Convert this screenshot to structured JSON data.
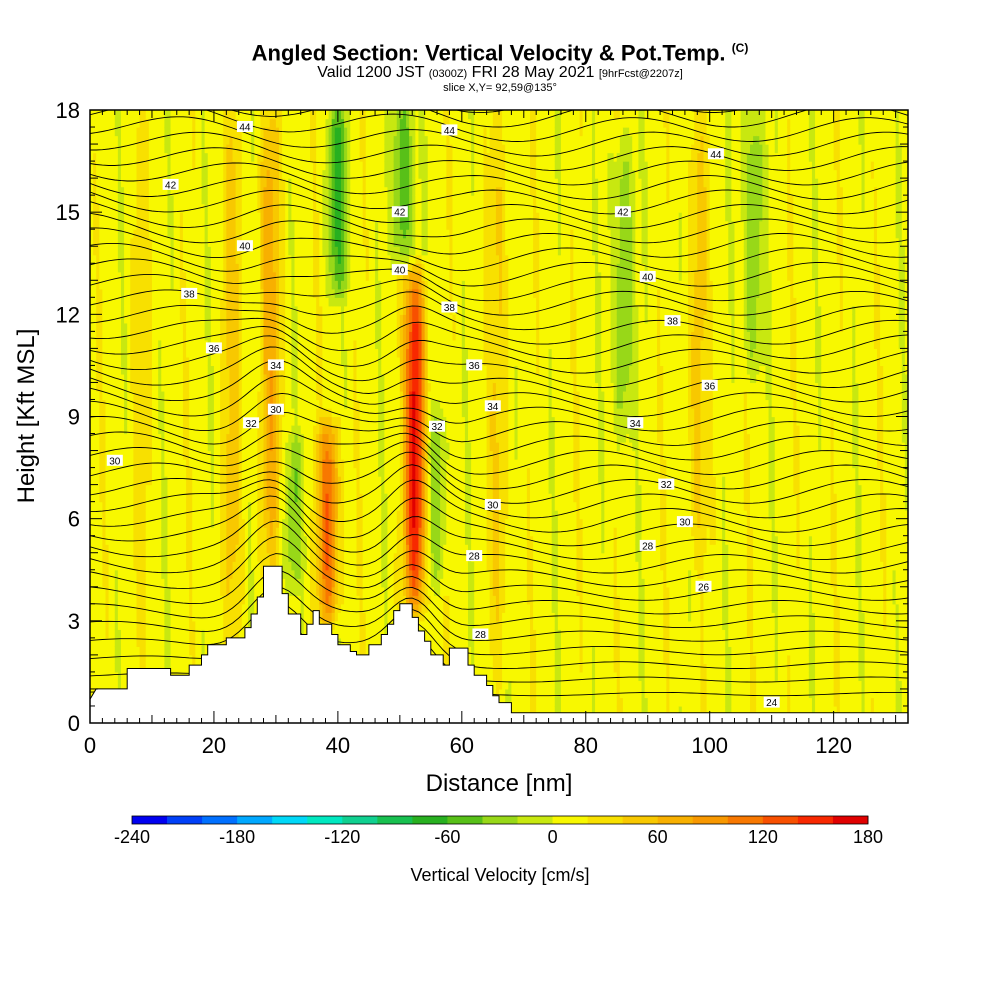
{
  "title": {
    "main": "Angled Section: Vertical Velocity & Pot.Temp.",
    "main_suffix": "(C)",
    "valid_prefix": "Valid 1200 JST",
    "valid_z": "(0300Z)",
    "valid_date": "FRI 28 May 2021",
    "valid_fcst": "[9hrFcst@2207z]",
    "slice": "slice X,Y= 92,59@135°"
  },
  "chart_data": {
    "type": "heatmap",
    "xlabel": "Distance [nm]",
    "ylabel": "Height [Kft MSL]",
    "xlim": [
      0,
      132
    ],
    "ylim": [
      0,
      18
    ],
    "xticks": [
      0,
      20,
      40,
      60,
      80,
      100,
      120
    ],
    "xtick_labels": [
      "0",
      "20",
      "40",
      "60",
      "80",
      "100",
      "120"
    ],
    "yticks": [
      0,
      3,
      6,
      9,
      12,
      15,
      18
    ],
    "ytick_labels": [
      "0",
      "3",
      "6",
      "9",
      "12",
      "15",
      "18"
    ],
    "terrain": [
      [
        0,
        0.7
      ],
      [
        1,
        1.0
      ],
      [
        6,
        1.0
      ],
      [
        6,
        1.6
      ],
      [
        13,
        1.6
      ],
      [
        13,
        1.4
      ],
      [
        16,
        1.4
      ],
      [
        16,
        1.7
      ],
      [
        18,
        1.7
      ],
      [
        18,
        2.0
      ],
      [
        19,
        2.0
      ],
      [
        19,
        2.3
      ],
      [
        22,
        2.3
      ],
      [
        22,
        2.5
      ],
      [
        25,
        2.5
      ],
      [
        25,
        2.8
      ],
      [
        26,
        2.8
      ],
      [
        26,
        3.2
      ],
      [
        27,
        3.2
      ],
      [
        27,
        3.7
      ],
      [
        28,
        3.7
      ],
      [
        28,
        4.6
      ],
      [
        31,
        4.6
      ],
      [
        31,
        3.8
      ],
      [
        32,
        3.8
      ],
      [
        32,
        3.2
      ],
      [
        34,
        3.2
      ],
      [
        34,
        2.6
      ],
      [
        35,
        2.6
      ],
      [
        35,
        2.9
      ],
      [
        36,
        2.9
      ],
      [
        36,
        3.3
      ],
      [
        37,
        3.3
      ],
      [
        37,
        2.9
      ],
      [
        39,
        2.9
      ],
      [
        39,
        2.6
      ],
      [
        40,
        2.6
      ],
      [
        40,
        2.3
      ],
      [
        42,
        2.3
      ],
      [
        42,
        2.1
      ],
      [
        43,
        2.1
      ],
      [
        43,
        2.0
      ],
      [
        45,
        2.0
      ],
      [
        45,
        2.3
      ],
      [
        47,
        2.3
      ],
      [
        47,
        2.6
      ],
      [
        48,
        2.6
      ],
      [
        48,
        2.9
      ],
      [
        49,
        2.9
      ],
      [
        49,
        3.3
      ],
      [
        50,
        3.3
      ],
      [
        50,
        3.5
      ],
      [
        52,
        3.5
      ],
      [
        52,
        3.1
      ],
      [
        53,
        3.1
      ],
      [
        53,
        2.7
      ],
      [
        54,
        2.7
      ],
      [
        54,
        2.4
      ],
      [
        55,
        2.4
      ],
      [
        55,
        2.0
      ],
      [
        57,
        2.0
      ],
      [
        57,
        1.7
      ],
      [
        58,
        1.7
      ],
      [
        58,
        2.2
      ],
      [
        61,
        2.2
      ],
      [
        61,
        1.7
      ],
      [
        62,
        1.7
      ],
      [
        62,
        1.4
      ],
      [
        64,
        1.4
      ],
      [
        64,
        1.1
      ],
      [
        65,
        1.1
      ],
      [
        65,
        0.8
      ],
      [
        66,
        0.8
      ],
      [
        66,
        0.6
      ],
      [
        68,
        0.6
      ],
      [
        68,
        0.3
      ],
      [
        132,
        0.3
      ]
    ],
    "theta_isolines": [
      24,
      26,
      28,
      30,
      32,
      34,
      36,
      38,
      40,
      42,
      44
    ],
    "isoline_labels": [
      {
        "text": "44",
        "x": 25,
        "y": 17.5
      },
      {
        "text": "44",
        "x": 58,
        "y": 17.4
      },
      {
        "text": "44",
        "x": 101,
        "y": 16.7
      },
      {
        "text": "42",
        "x": 13,
        "y": 15.8
      },
      {
        "text": "42",
        "x": 50,
        "y": 15.0
      },
      {
        "text": "42",
        "x": 86,
        "y": 15.0
      },
      {
        "text": "40",
        "x": 25,
        "y": 14.0
      },
      {
        "text": "40",
        "x": 50,
        "y": 13.3
      },
      {
        "text": "40",
        "x": 90,
        "y": 13.1
      },
      {
        "text": "38",
        "x": 16,
        "y": 12.6
      },
      {
        "text": "38",
        "x": 58,
        "y": 12.2
      },
      {
        "text": "38",
        "x": 94,
        "y": 11.8
      },
      {
        "text": "36",
        "x": 20,
        "y": 11.0
      },
      {
        "text": "36",
        "x": 62,
        "y": 10.5
      },
      {
        "text": "36",
        "x": 100,
        "y": 9.9
      },
      {
        "text": "34",
        "x": 30,
        "y": 10.5
      },
      {
        "text": "34",
        "x": 65,
        "y": 9.3
      },
      {
        "text": "34",
        "x": 88,
        "y": 8.8
      },
      {
        "text": "32",
        "x": 26,
        "y": 8.8
      },
      {
        "text": "32",
        "x": 56,
        "y": 8.7
      },
      {
        "text": "32",
        "x": 93,
        "y": 7.0
      },
      {
        "text": "30",
        "x": 30,
        "y": 9.2
      },
      {
        "text": "30",
        "x": 4,
        "y": 7.7
      },
      {
        "text": "30",
        "x": 65,
        "y": 6.4
      },
      {
        "text": "30",
        "x": 96,
        "y": 5.9
      },
      {
        "text": "28",
        "x": 62,
        "y": 4.9
      },
      {
        "text": "28",
        "x": 90,
        "y": 5.2
      },
      {
        "text": "28",
        "x": 63,
        "y": 2.6
      },
      {
        "text": "26",
        "x": 99,
        "y": 4.0
      },
      {
        "text": "24",
        "x": 110,
        "y": 0.6
      }
    ],
    "colorbar": {
      "title": "Vertical Velocity [cm/s]",
      "min": -240,
      "max": 180,
      "step": 20,
      "tick_values": [
        -240,
        -180,
        -120,
        -60,
        0,
        60,
        120,
        180
      ],
      "tick_labels": [
        "-240",
        "-180",
        "-120",
        "-60",
        "0",
        "60",
        "120",
        "180"
      ],
      "colors": [
        "#0000f0",
        "#0040f8",
        "#0070ff",
        "#00a8ff",
        "#00d8f8",
        "#00e8c0",
        "#10d090",
        "#18c050",
        "#28b020",
        "#58c018",
        "#98d818",
        "#c8e810",
        "#f8f800",
        "#f8e000",
        "#f8c800",
        "#f8b000",
        "#f89800",
        "#f87800",
        "#f85000",
        "#f82800",
        "#e00000",
        "#c00030",
        "#980060",
        "#700090",
        "#500080"
      ]
    },
    "updraft_columns": [
      {
        "x_center": 29,
        "y_range": [
          4.5,
          18
        ],
        "peak": 60
      },
      {
        "x_center": 38.5,
        "y_range": [
          3.3,
          8.5
        ],
        "peak": 110
      },
      {
        "x_center": 52.5,
        "y_range": [
          3.5,
          13
        ],
        "peak": 160
      },
      {
        "x_center": 23,
        "y_range": [
          2.5,
          18
        ],
        "peak": 35
      },
      {
        "x_center": 66,
        "y_range": [
          1.5,
          18
        ],
        "peak": 30
      },
      {
        "x_center": 98,
        "y_range": [
          5,
          18
        ],
        "peak": 35
      },
      {
        "x_center": 8,
        "y_range": [
          2,
          18
        ],
        "peak": 15
      }
    ],
    "downdraft_columns": [
      {
        "x_center": 40,
        "y_range": [
          13,
          18
        ],
        "peak": -70
      },
      {
        "x_center": 50.5,
        "y_range": [
          14,
          18
        ],
        "peak": -70
      },
      {
        "x_center": 86,
        "y_range": [
          8.5,
          17
        ],
        "peak": -50
      },
      {
        "x_center": 107,
        "y_range": [
          10.5,
          18
        ],
        "peak": -50
      },
      {
        "x_center": 56,
        "y_range": [
          4.5,
          9
        ],
        "peak": -45
      },
      {
        "x_center": 33,
        "y_range": [
          4.5,
          8
        ],
        "peak": -40
      }
    ]
  }
}
